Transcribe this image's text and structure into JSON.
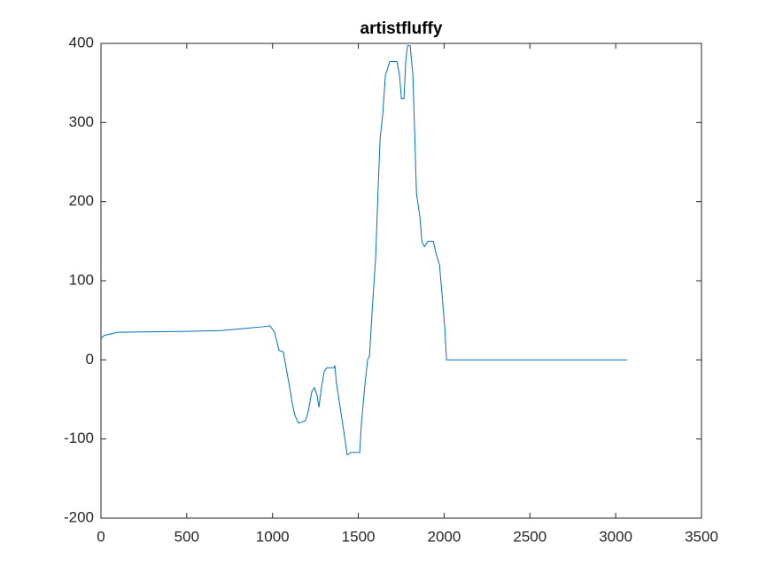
{
  "chart_data": {
    "type": "line",
    "title": "artistfluffy",
    "x": [
      0,
      20,
      100,
      500,
      700,
      850,
      950,
      985,
      1012,
      1037,
      1063,
      1079,
      1100,
      1115,
      1130,
      1151,
      1192,
      1208,
      1229,
      1244,
      1260,
      1270,
      1285,
      1301,
      1316,
      1358,
      1363,
      1373,
      1394,
      1415,
      1435,
      1456,
      1508,
      1518,
      1539,
      1554,
      1565,
      1580,
      1601,
      1616,
      1627,
      1642,
      1658,
      1673,
      1683,
      1725,
      1740,
      1751,
      1766,
      1777,
      1787,
      1802,
      1818,
      1828,
      1839,
      1859,
      1870,
      1885,
      1906,
      1937,
      1952,
      1973,
      1989,
      2004,
      2014,
      3068
    ],
    "series": [
      {
        "name": "artistfluffy",
        "color": "#0072bd",
        "values": [
          27,
          31,
          35,
          36,
          37,
          40,
          42,
          43,
          35,
          12,
          10,
          -10,
          -35,
          -55,
          -70,
          -80,
          -77,
          -65,
          -40,
          -35,
          -45,
          -60,
          -35,
          -15,
          -10,
          -10,
          -7,
          -30,
          -60,
          -90,
          -120,
          -117,
          -117,
          -80,
          -30,
          0,
          5,
          60,
          130,
          220,
          280,
          310,
          360,
          370,
          377,
          377,
          360,
          330,
          330,
          380,
          397,
          397,
          360,
          290,
          210,
          180,
          150,
          143,
          150,
          150,
          135,
          120,
          80,
          40,
          0,
          0
        ]
      }
    ],
    "xlim": [
      0,
      3500
    ],
    "xticks": [
      0,
      500,
      1000,
      1500,
      2000,
      2500,
      3000,
      3500
    ],
    "ylim": [
      -200,
      400
    ],
    "yticks": [
      -200,
      -100,
      0,
      100,
      200,
      300,
      400
    ]
  }
}
